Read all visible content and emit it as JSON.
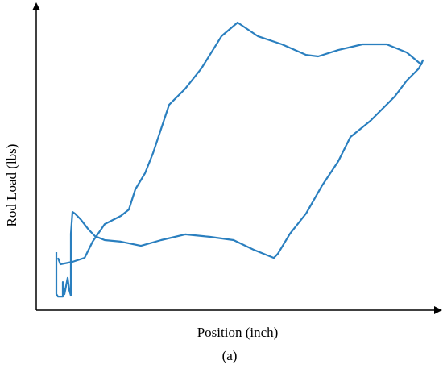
{
  "chart_data": {
    "type": "line",
    "x_label": "Position (inch)",
    "y_label": "Rod Load (lbs)",
    "caption": "(a)",
    "xlim": [
      0,
      100
    ],
    "ylim": [
      0,
      100
    ],
    "series": [
      {
        "color": "#2a7fbf",
        "x": [
          5,
          5,
          5.4,
          6.6,
          6.6,
          7,
          7.8,
          8.2,
          8.6,
          8.6,
          9,
          9.6,
          11,
          13,
          14.6,
          17,
          21,
          26,
          31,
          37,
          43,
          49,
          54,
          59,
          60,
          63,
          67,
          71,
          75,
          78,
          83,
          89,
          92,
          95,
          96,
          95.6,
          92,
          87,
          81,
          75,
          70,
          67,
          61,
          55,
          50,
          46,
          41,
          37,
          33,
          31,
          29,
          27,
          24.6,
          23,
          21,
          17,
          14,
          12,
          9,
          6,
          5.4
        ],
        "values": [
          19.2,
          5.3,
          4.5,
          4.5,
          9.3,
          5.3,
          10.7,
          6.7,
          4.8,
          25.3,
          32.5,
          32,
          30.1,
          26.7,
          24.5,
          23.2,
          22.7,
          21.3,
          23.2,
          25.1,
          24.3,
          23.2,
          20,
          17.3,
          18.7,
          25.3,
          32,
          41.3,
          49.3,
          57.3,
          62.7,
          70.7,
          76,
          80,
          82.7,
          81.3,
          85.3,
          88,
          88,
          86.1,
          84,
          84.5,
          88,
          90.7,
          95.2,
          90.7,
          80,
          73.3,
          68,
          60,
          52,
          45.3,
          40,
          33.3,
          31.2,
          28.5,
          22.7,
          17.3,
          16,
          15.2,
          17.3
        ]
      }
    ]
  }
}
